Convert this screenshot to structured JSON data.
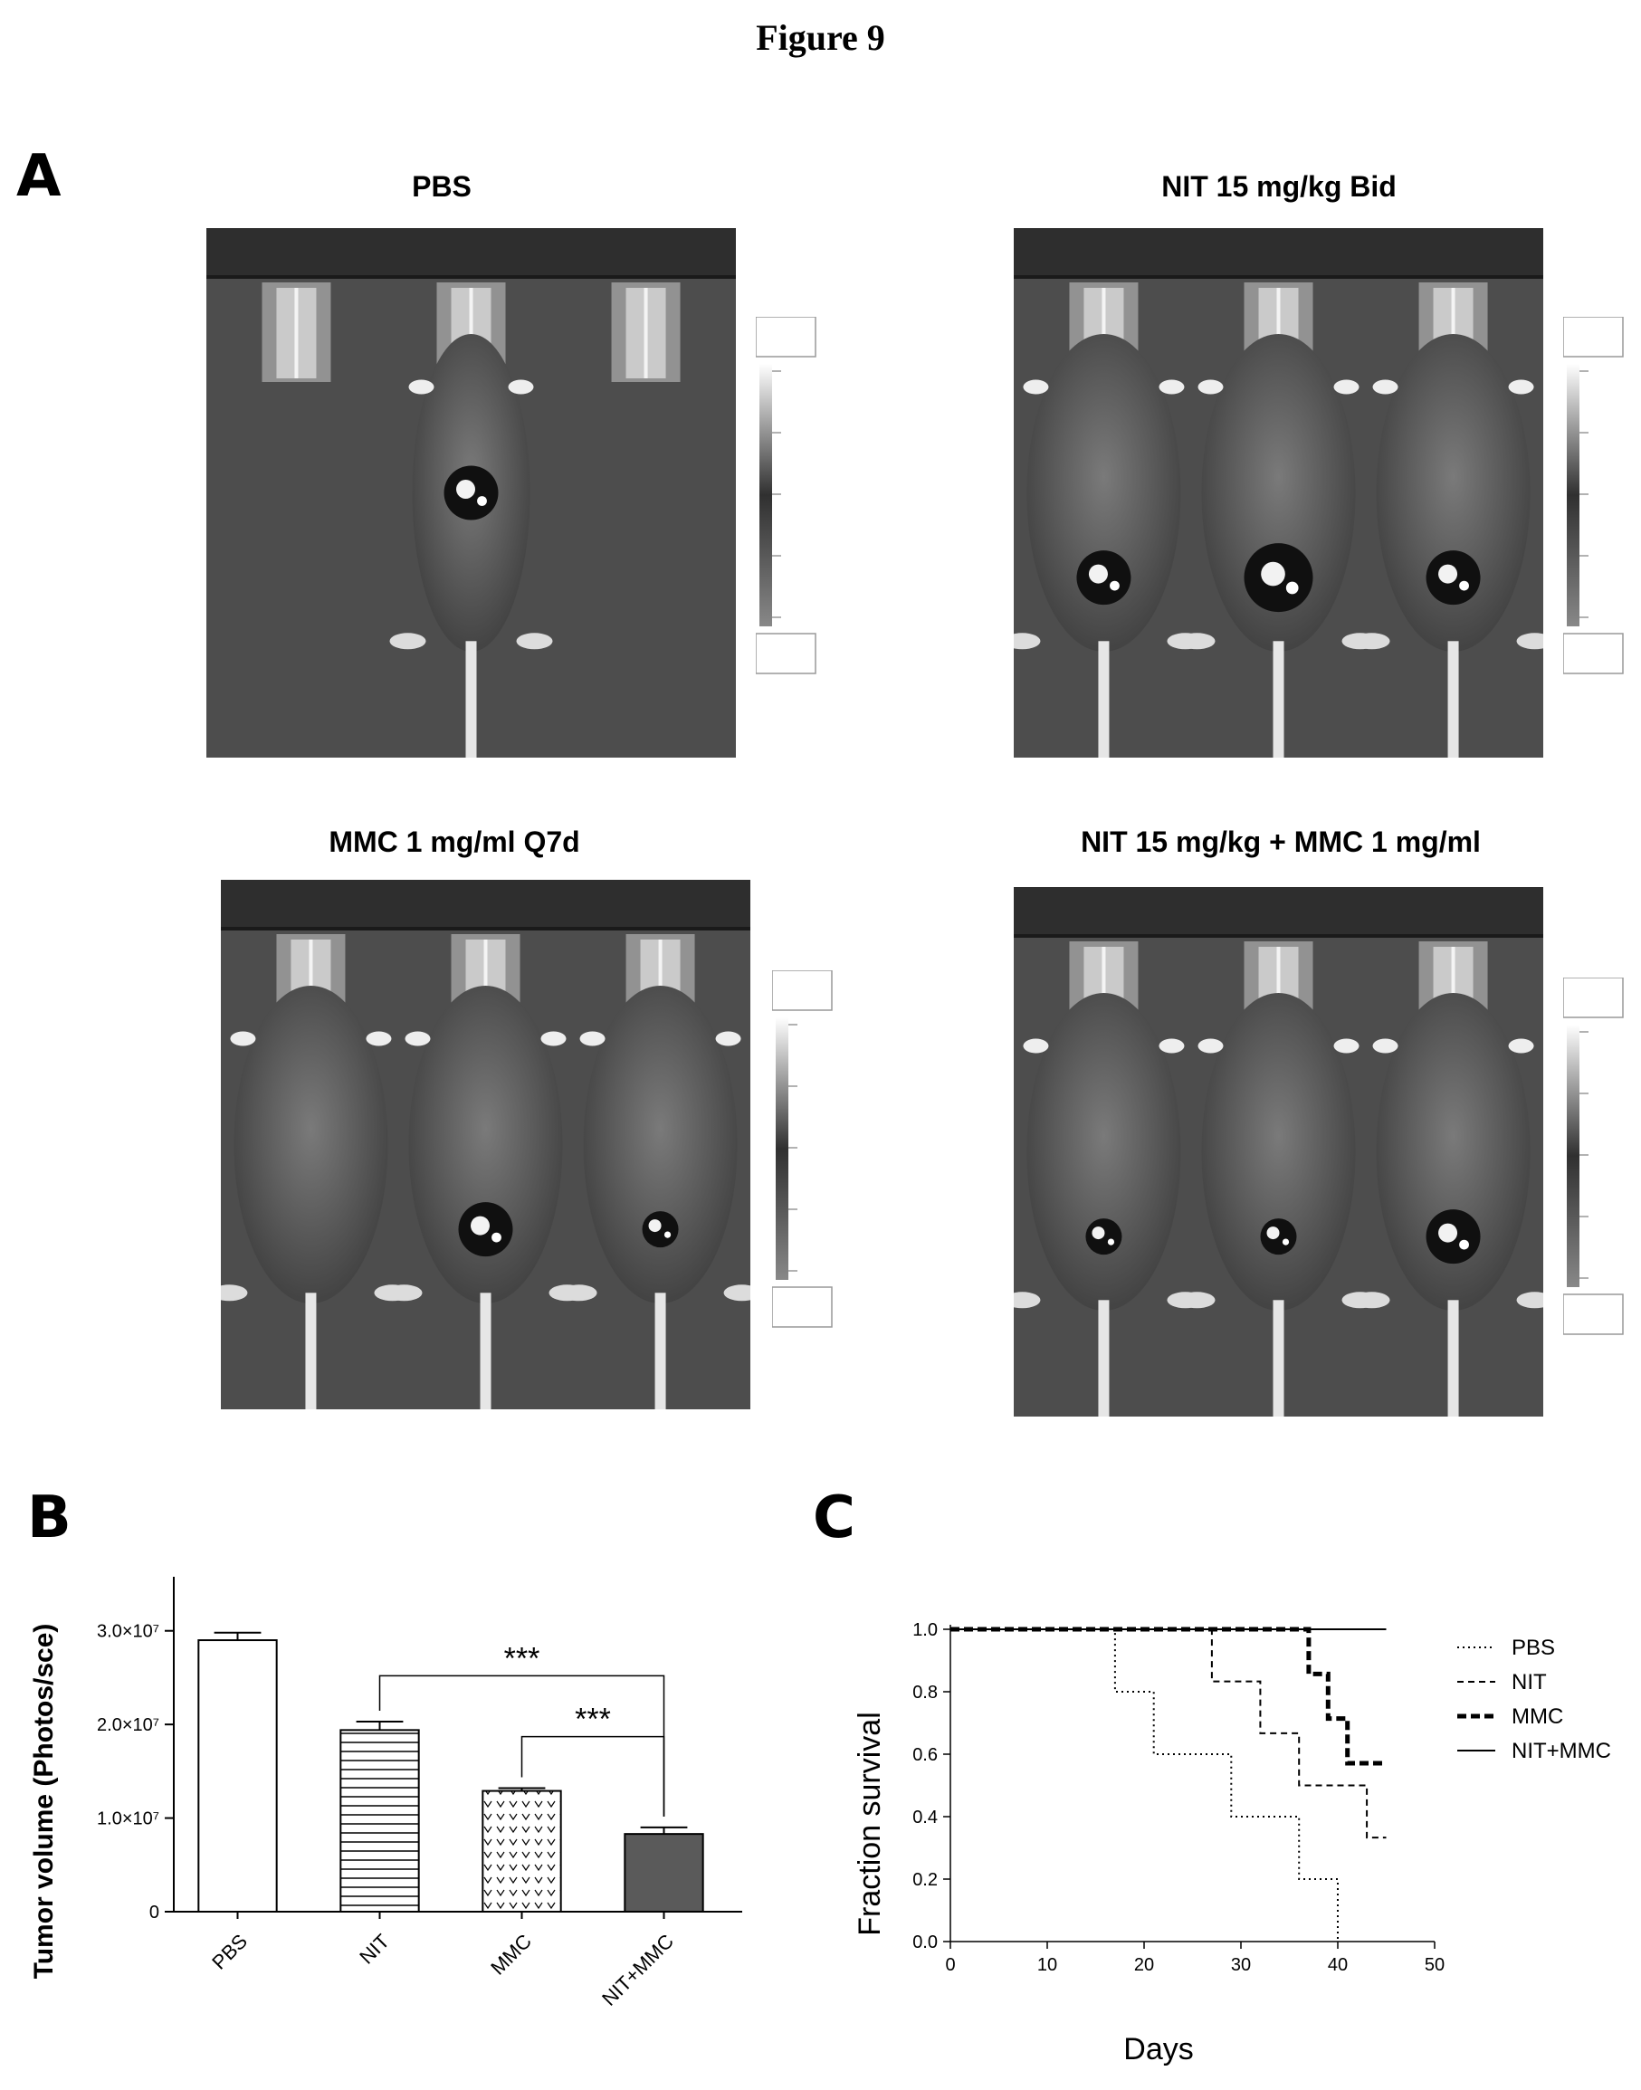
{
  "figure_title": "Figure 9",
  "panels": {
    "a": "A",
    "b": "B",
    "c": "C"
  },
  "panel_a": {
    "images": [
      {
        "title": "PBS",
        "mice": 1,
        "signals": [
          "medium"
        ]
      },
      {
        "title": "NIT 15 mg/kg Bid",
        "mice": 3,
        "signals": [
          "medium",
          "high",
          "medium"
        ]
      },
      {
        "title": "MMC 1 mg/ml Q7d",
        "mice": 3,
        "signals": [
          "none",
          "medium",
          "small"
        ]
      },
      {
        "title": "NIT 15 mg/kg + MMC 1 mg/ml",
        "mice": 3,
        "signals": [
          "small",
          "small",
          "medium"
        ]
      }
    ]
  },
  "chart_data": [
    {
      "type": "bar",
      "ylabel": "Tumor volume (Photos/sce)",
      "categories": [
        "PBS",
        "NIT",
        "MMC",
        "NIT+MMC"
      ],
      "values": [
        29000000,
        19400000,
        12900000,
        8300000
      ],
      "errors": [
        800000,
        900000,
        300000,
        700000
      ],
      "bar_patterns": [
        "open",
        "horizontal-lines",
        "dotted-v",
        "dark-solid"
      ],
      "ylim": [
        0,
        35000000
      ],
      "yticks": [
        0,
        10000000,
        20000000,
        30000000
      ],
      "ytick_labels": [
        "0",
        "1.0×10⁷",
        "2.0×10⁷",
        "3.0×10⁷"
      ],
      "significance": [
        {
          "from": "NIT",
          "to": "NIT+MMC",
          "label": "***"
        },
        {
          "from": "MMC",
          "to": "NIT+MMC",
          "label": "***"
        }
      ]
    },
    {
      "type": "line",
      "xlabel": "Days",
      "ylabel": "Fraction survival",
      "xlim": [
        0,
        50
      ],
      "ylim": [
        0,
        1.0
      ],
      "xticks": [
        0,
        10,
        20,
        30,
        40,
        50
      ],
      "yticks": [
        0.0,
        0.2,
        0.4,
        0.6,
        0.8,
        1.0
      ],
      "ytick_labels": [
        "0.0",
        "0.2",
        "0.4",
        "0.6",
        "0.8",
        "1.0"
      ],
      "legend_position": "right",
      "series": [
        {
          "name": "PBS",
          "style": "dotted",
          "steps": [
            [
              0,
              1.0
            ],
            [
              17,
              0.8
            ],
            [
              21,
              0.6
            ],
            [
              29,
              0.4
            ],
            [
              36,
              0.2
            ],
            [
              40,
              0.0
            ]
          ],
          "end": 40
        },
        {
          "name": "NIT",
          "style": "dashed",
          "steps": [
            [
              0,
              1.0
            ],
            [
              27,
              0.833
            ],
            [
              32,
              0.667
            ],
            [
              36,
              0.5
            ],
            [
              43,
              0.333
            ]
          ],
          "end": 45
        },
        {
          "name": "MMC",
          "style": "thick-dashed",
          "steps": [
            [
              0,
              1.0
            ],
            [
              37,
              0.857
            ],
            [
              39,
              0.714
            ],
            [
              41,
              0.571
            ]
          ],
          "end": 45
        },
        {
          "name": "NIT+MMC",
          "style": "solid",
          "steps": [
            [
              0,
              1.0
            ]
          ],
          "end": 45
        }
      ]
    }
  ]
}
